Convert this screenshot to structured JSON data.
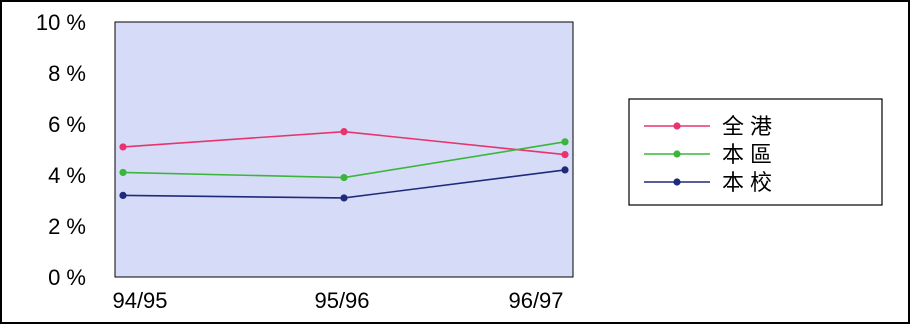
{
  "chart_data": {
    "type": "line",
    "categories": [
      "94/95",
      "95/96",
      "96/97"
    ],
    "y_tick_labels": [
      "0 %",
      "2 %",
      "4 %",
      "6 %",
      "8 %",
      "10 %"
    ],
    "ylim": [
      0,
      10
    ],
    "grid": false,
    "legend_position": "right",
    "plot_background": "#d6dcf8",
    "series": [
      {
        "name": "全港",
        "values": [
          5.1,
          5.7,
          4.8
        ],
        "color": "#e8336e"
      },
      {
        "name": "本區",
        "values": [
          4.1,
          3.9,
          5.3
        ],
        "color": "#3bb63b"
      },
      {
        "name": "本校",
        "values": [
          3.2,
          3.1,
          4.2
        ],
        "color": "#1f2a7a"
      }
    ]
  }
}
